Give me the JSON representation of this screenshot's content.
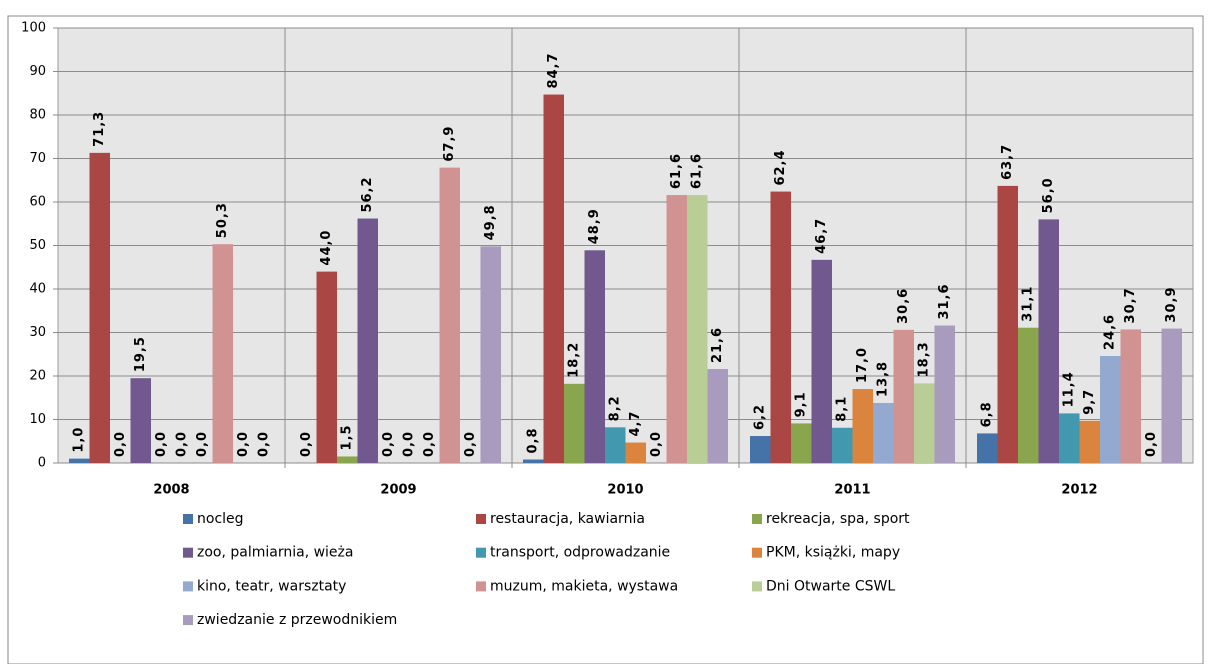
{
  "chart_data": {
    "type": "bar",
    "categories": [
      "2008",
      "2009",
      "2010",
      "2011",
      "2012"
    ],
    "series": [
      {
        "name": "nocleg",
        "color": "#4572a7",
        "values": [
          1.0,
          0.0,
          0.8,
          6.2,
          6.8
        ],
        "value_labels": [
          "1,0",
          "0,0",
          "0,8",
          "6,2",
          "6,8"
        ]
      },
      {
        "name": "restauracja, kawiarnia",
        "color": "#aa4643",
        "values": [
          71.3,
          44.0,
          84.7,
          62.4,
          63.7
        ],
        "value_labels": [
          "71,3",
          "44,0",
          "84,7",
          "62,4",
          "63,7"
        ]
      },
      {
        "name": "rekreacja, spa, sport",
        "color": "#89a54e",
        "values": [
          0.0,
          1.5,
          18.2,
          9.1,
          31.1
        ],
        "value_labels": [
          "0,0",
          "1,5",
          "18,2",
          "9,1",
          "31,1"
        ]
      },
      {
        "name": "zoo, palmiarnia,  wieża",
        "color": "#71588f",
        "values": [
          19.5,
          56.2,
          48.9,
          46.7,
          56.0
        ],
        "value_labels": [
          "19,5",
          "56,2",
          "48,9",
          "46,7",
          "56,0"
        ]
      },
      {
        "name": "transport, odprowadzanie",
        "color": "#4198af",
        "values": [
          0.0,
          0.0,
          8.2,
          8.1,
          11.4
        ],
        "value_labels": [
          "0,0",
          "0,0",
          "8,2",
          "8,1",
          "11,4"
        ]
      },
      {
        "name": "PKM, książki, mapy",
        "color": "#db843d",
        "values": [
          0.0,
          0.0,
          4.7,
          17.0,
          9.7
        ],
        "value_labels": [
          "0,0",
          "0,0",
          "4,7",
          "17,0",
          "9,7"
        ]
      },
      {
        "name": "kino, teatr, warsztaty",
        "color": "#93a9cf",
        "values": [
          0.0,
          0.0,
          0.0,
          13.8,
          24.6
        ],
        "value_labels": [
          "0,0",
          "0,0",
          "0,0",
          "13,8",
          "24,6"
        ]
      },
      {
        "name": "muzum, makieta, wystawa",
        "color": "#d19392",
        "values": [
          50.3,
          67.9,
          61.6,
          30.6,
          30.7
        ],
        "value_labels": [
          "50,3",
          "67,9",
          "61,6",
          "30,6",
          "30,7"
        ]
      },
      {
        "name": "Dni Otwarte CSWL",
        "color": "#b9cd96",
        "values": [
          0.0,
          0.0,
          61.6,
          18.3,
          0.0
        ],
        "value_labels": [
          "0,0",
          "0,0",
          "61,6",
          "18,3",
          "0,0"
        ]
      },
      {
        "name": "zwiedzanie z przewodnikiem",
        "color": "#a99bbd",
        "values": [
          0.0,
          49.8,
          21.6,
          31.6,
          30.9
        ],
        "value_labels": [
          "0,0",
          "49,8",
          "21,6",
          "31,6",
          "30,9"
        ]
      }
    ],
    "ylim": [
      0,
      100
    ],
    "yticks": [
      0,
      10,
      20,
      30,
      40,
      50,
      60,
      70,
      80,
      90,
      100
    ],
    "grid": true,
    "legend": "bottom"
  }
}
